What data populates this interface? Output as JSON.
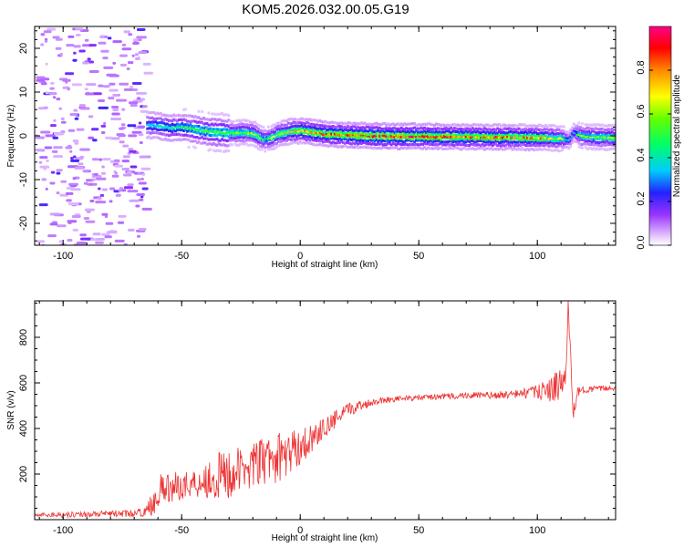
{
  "title": "KOM5.2026.032.00.05.G19",
  "chart_data": [
    {
      "type": "heatmap",
      "name": "spectrogram",
      "xlabel": "Height of straight line (km)",
      "ylabel": "Frequency (Hz)",
      "xlim": [
        -112,
        133
      ],
      "ylim": [
        -25,
        25
      ],
      "xticks": [
        -100,
        -50,
        0,
        50,
        100
      ],
      "yticks": [
        -20,
        -10,
        0,
        10,
        20
      ],
      "colorbar": {
        "label": "Normalized spectral amplitude",
        "range": [
          0.0,
          1.0
        ],
        "ticks": [
          0.0,
          0.2,
          0.4,
          0.6,
          0.8
        ],
        "tick_labels": [
          "0.0",
          "0.2",
          "0.4",
          "0.6",
          "0.8"
        ]
      },
      "ridge_line": {
        "x": [
          -65,
          -60,
          -55,
          -50,
          -45,
          -40,
          -35,
          -30,
          -25,
          -20,
          -17,
          -15,
          -12,
          -10,
          -5,
          0,
          5,
          10,
          20,
          30,
          40,
          50,
          60,
          70,
          80,
          90,
          100,
          110,
          113,
          115,
          118,
          125,
          133
        ],
        "frequency_hz": [
          2.5,
          2.2,
          1.8,
          2.0,
          1.5,
          1.0,
          0.8,
          0.6,
          0.8,
          0.5,
          -0.5,
          -0.8,
          -0.3,
          0.3,
          1.0,
          1.2,
          0.8,
          0.4,
          0.2,
          0.0,
          -0.1,
          -0.1,
          -0.2,
          -0.2,
          -0.3,
          -0.3,
          -0.4,
          -0.6,
          -1.0,
          0.8,
          0.0,
          -0.3,
          -0.4
        ],
        "amplitude": [
          0.35,
          0.38,
          0.42,
          0.45,
          0.48,
          0.5,
          0.55,
          0.55,
          0.58,
          0.6,
          0.55,
          0.5,
          0.6,
          0.62,
          0.7,
          0.75,
          0.8,
          0.82,
          0.85,
          0.9,
          0.9,
          0.88,
          0.85,
          0.8,
          0.82,
          0.78,
          0.75,
          0.6,
          0.3,
          0.35,
          0.55,
          0.6,
          0.62
        ]
      }
    },
    {
      "type": "line",
      "name": "snr",
      "xlabel": "Height of straight line (km)",
      "ylabel": "SNR (v/v)",
      "xlim": [
        -112,
        133
      ],
      "ylim": [
        0,
        960
      ],
      "xticks": [
        -100,
        -50,
        0,
        50,
        100
      ],
      "yticks": [
        200,
        400,
        600,
        800
      ],
      "series": [
        {
          "name": "SNR",
          "color": "#ee3333",
          "x": [
            -112,
            -100,
            -90,
            -80,
            -70,
            -65,
            -62,
            -60,
            -55,
            -50,
            -45,
            -40,
            -35,
            -30,
            -25,
            -20,
            -15,
            -10,
            -5,
            0,
            5,
            10,
            15,
            20,
            25,
            30,
            35,
            40,
            50,
            60,
            70,
            80,
            90,
            100,
            105,
            108,
            110,
            112,
            113,
            114,
            115,
            117,
            120,
            125,
            133
          ],
          "y": [
            20,
            22,
            24,
            25,
            27,
            35,
            80,
            120,
            140,
            150,
            160,
            175,
            185,
            200,
            220,
            240,
            255,
            270,
            290,
            320,
            360,
            400,
            440,
            480,
            500,
            515,
            525,
            530,
            535,
            540,
            545,
            545,
            550,
            560,
            570,
            580,
            590,
            620,
            960,
            700,
            450,
            560,
            570,
            575,
            578
          ],
          "noise_amplitude": [
            10,
            12,
            12,
            14,
            16,
            20,
            60,
            80,
            70,
            60,
            70,
            80,
            110,
            130,
            90,
            100,
            110,
            110,
            100,
            80,
            60,
            45,
            40,
            30,
            25,
            15,
            15,
            12,
            12,
            14,
            14,
            16,
            18,
            30,
            50,
            70,
            80,
            70,
            0,
            60,
            40,
            20,
            14,
            12,
            12
          ]
        }
      ]
    }
  ]
}
